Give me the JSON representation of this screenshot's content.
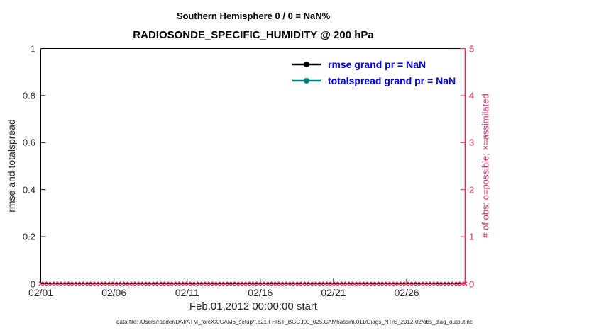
{
  "chart_data": {
    "type": "line",
    "title_line1": "Southern Hemisphere 0 / 0 = NaN%",
    "title_line2": "RADIOSONDE_SPECIFIC_HUMIDITY @ 200 hPa",
    "xlabel": "Feb.01,2012 00:00:00 start",
    "ylabel_left": "rmse and totalspread",
    "ylabel_right": "# of obs: o=possible; ×=assimilated",
    "x_ticks": [
      "02/01",
      "02/06",
      "02/11",
      "02/16",
      "02/21",
      "02/26"
    ],
    "x_tick_days": [
      1,
      6,
      11,
      16,
      21,
      26
    ],
    "x_range_days": [
      1,
      30
    ],
    "y_left_ticks": [
      "0",
      "0.2",
      "0.4",
      "0.6",
      "0.8",
      "1"
    ],
    "y_left_values": [
      0,
      0.2,
      0.4,
      0.6,
      0.8,
      1
    ],
    "y_left_range": [
      0,
      1
    ],
    "y_right_ticks": [
      "0",
      "1",
      "2",
      "3",
      "4",
      "5"
    ],
    "y_right_values": [
      0,
      1,
      2,
      3,
      4,
      5
    ],
    "y_right_range": [
      0,
      5
    ],
    "grid": false,
    "legend_position": "top-center-inside",
    "series": [
      {
        "key": "rmse",
        "name": "rmse grand pr = NaN",
        "color": "#000000",
        "values": []
      },
      {
        "key": "totalspread",
        "name": "totalspread grand pr = NaN",
        "color": "#00827F",
        "values": []
      }
    ],
    "assimilated_markers": {
      "marker": "x",
      "color": "#E61E5A",
      "value": 0,
      "count": 116
    },
    "colors": {
      "axis_box": "#000000",
      "right_axis": "#E61E5A",
      "legend_text": "#0000EE",
      "tick_text": "#262626"
    },
    "caption": "data file: /Users/raeder/DAI/ATM_forcXX/CAM6_setup/f.e21.FHIST_BGC.f09_025.CAM6assim.011/Diags_NTrS_2012-02/obs_diag_output.nc"
  }
}
